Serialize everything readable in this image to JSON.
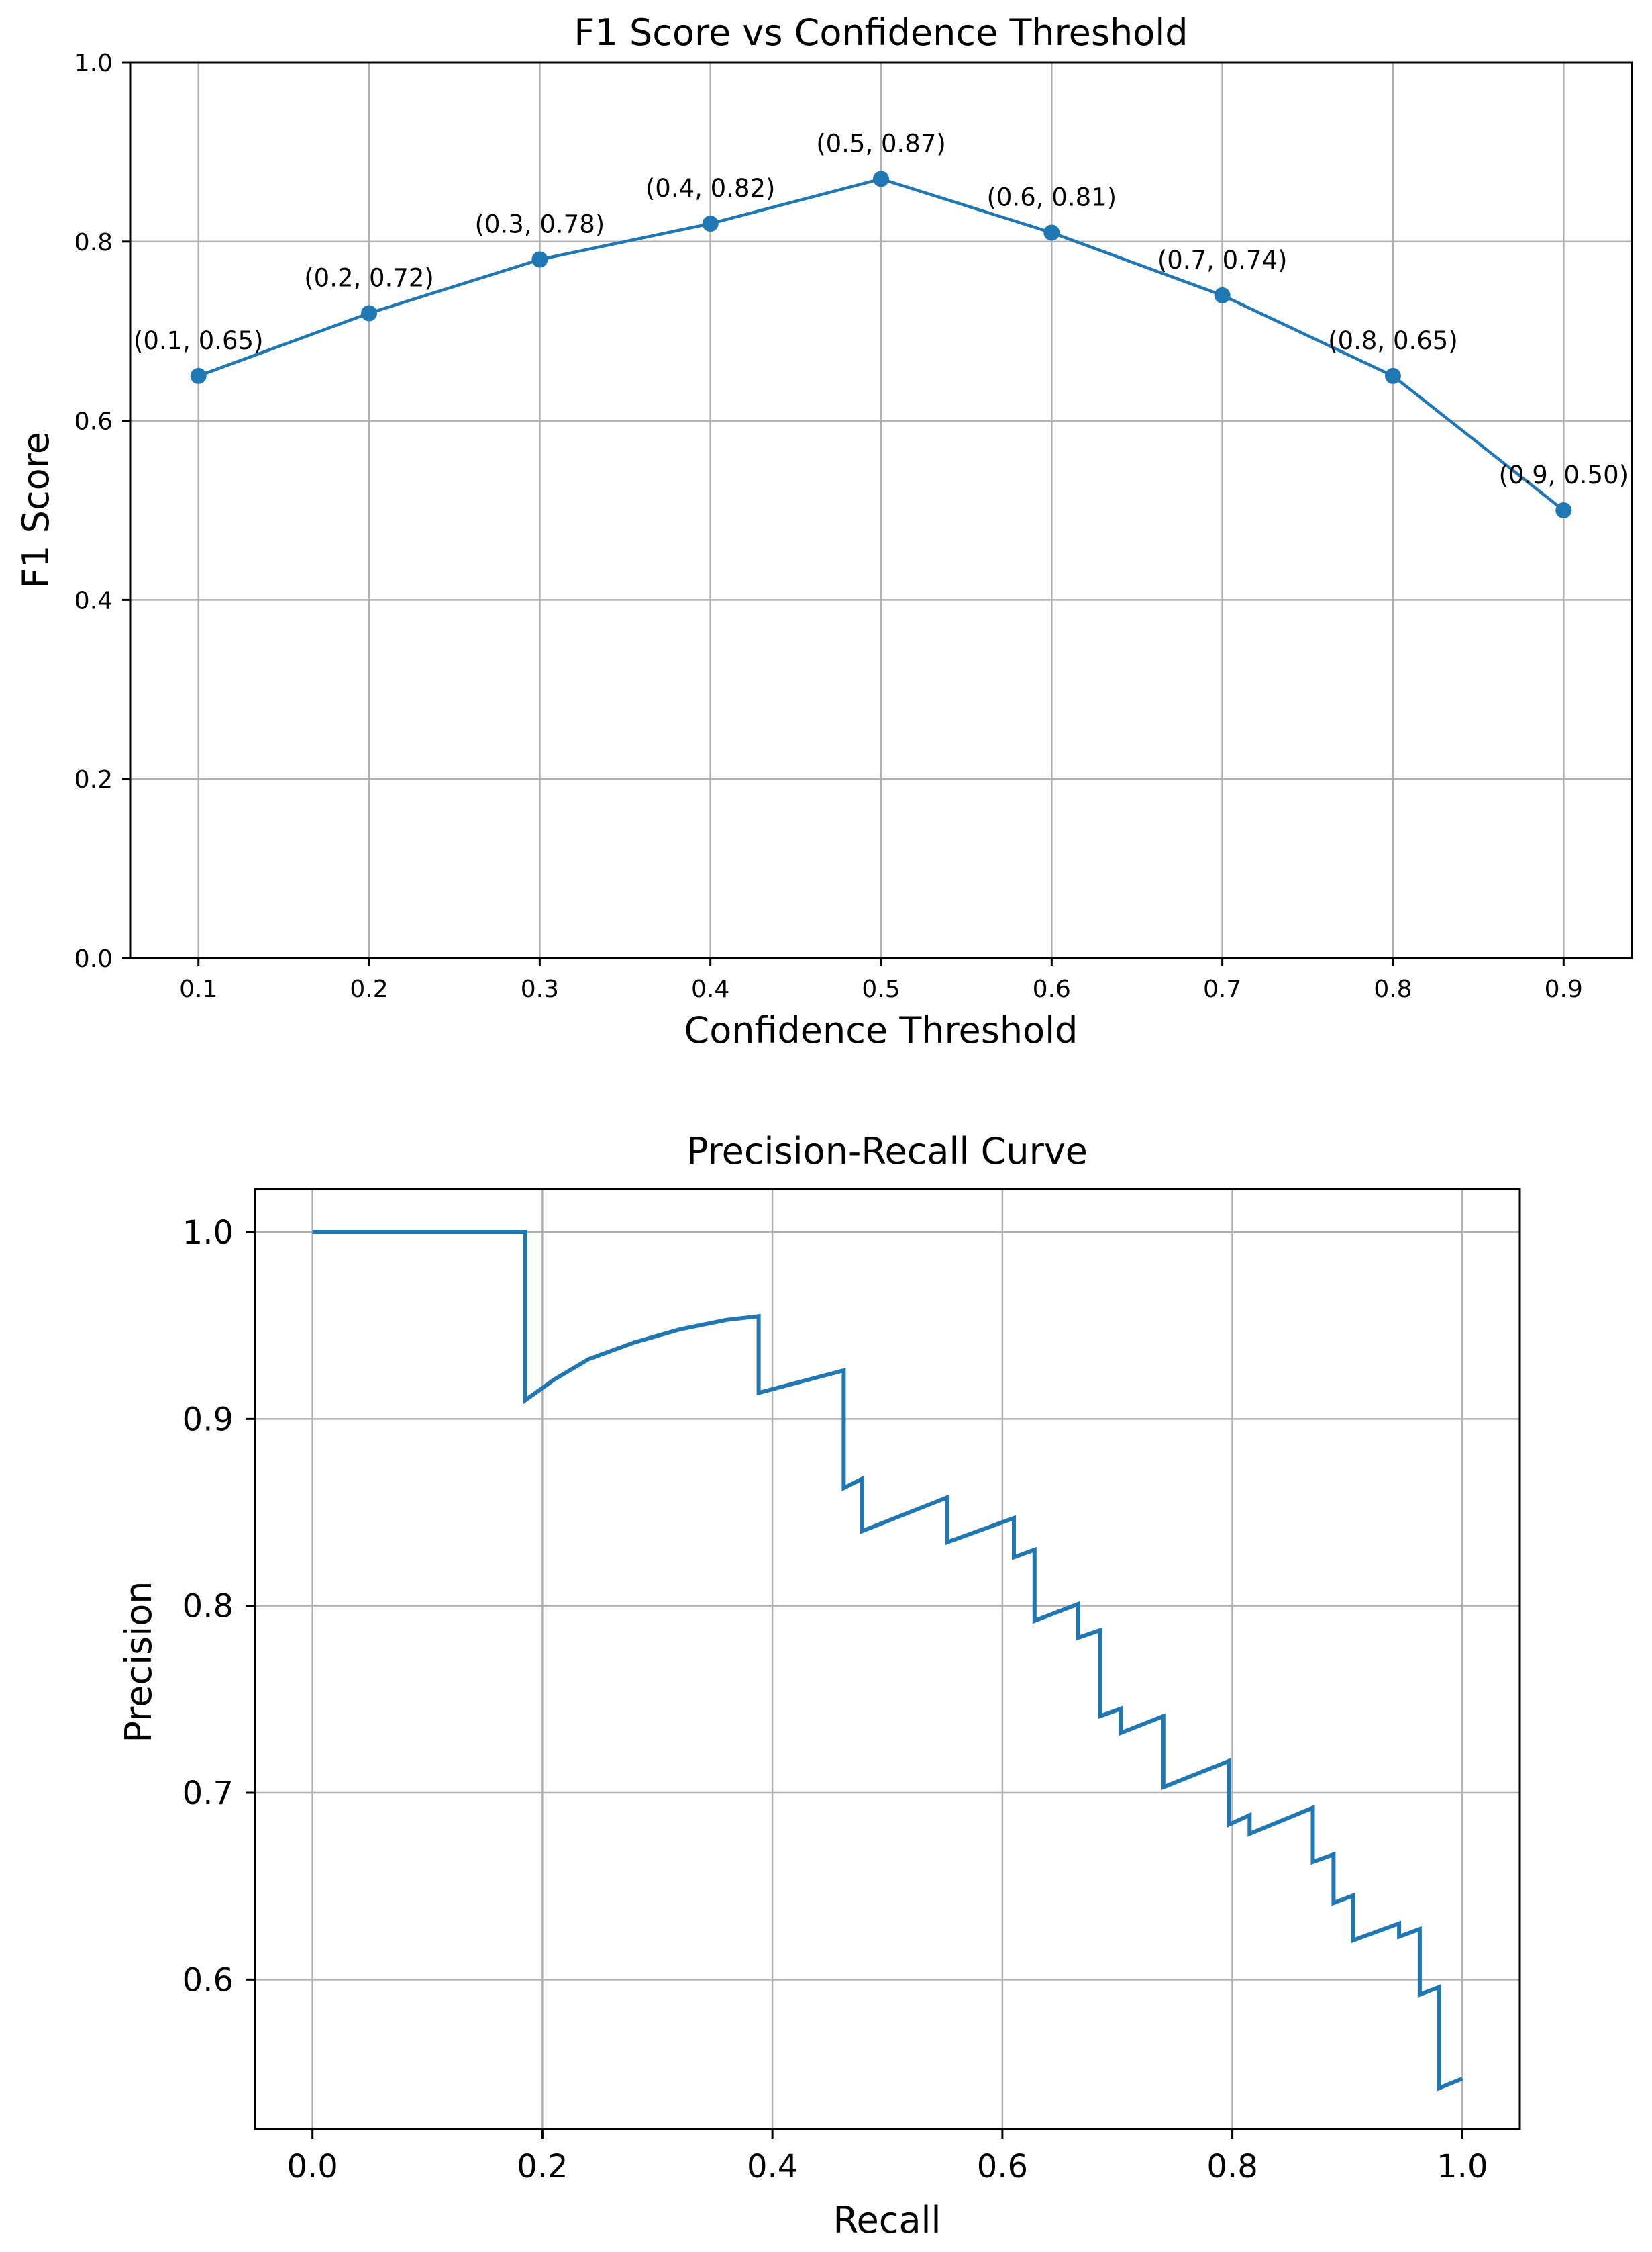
{
  "chart_data": [
    {
      "type": "line",
      "title": "F1 Score vs Confidence Threshold",
      "xlabel": "Confidence Threshold",
      "ylabel": "F1 Score",
      "x": [
        0.1,
        0.2,
        0.3,
        0.4,
        0.5,
        0.6,
        0.7,
        0.8,
        0.9
      ],
      "y": [
        0.65,
        0.72,
        0.78,
        0.82,
        0.87,
        0.81,
        0.74,
        0.65,
        0.5
      ],
      "point_labels": [
        "(0.1, 0.65)",
        "(0.2, 0.72)",
        "(0.3, 0.78)",
        "(0.4, 0.82)",
        "(0.5, 0.87)",
        "(0.6, 0.81)",
        "(0.7, 0.74)",
        "(0.8, 0.65)",
        "(0.9, 0.50)"
      ],
      "xlim": [
        0.06,
        0.94
      ],
      "ylim": [
        0.0,
        1.0
      ],
      "xticks": [
        "0.1",
        "0.2",
        "0.3",
        "0.4",
        "0.5",
        "0.6",
        "0.7",
        "0.8",
        "0.9"
      ],
      "yticks": [
        "0.0",
        "0.2",
        "0.4",
        "0.6",
        "0.8",
        "1.0"
      ],
      "grid": true,
      "color": "#1f77b4"
    },
    {
      "type": "line",
      "title": "Precision-Recall Curve",
      "xlabel": "Recall",
      "ylabel": "Precision",
      "recall": [
        0.0,
        0.185,
        0.185,
        0.21,
        0.24,
        0.28,
        0.32,
        0.36,
        0.388,
        0.388,
        0.462,
        0.462,
        0.478,
        0.478,
        0.552,
        0.552,
        0.61,
        0.61,
        0.628,
        0.628,
        0.666,
        0.666,
        0.685,
        0.685,
        0.703,
        0.703,
        0.74,
        0.74,
        0.797,
        0.797,
        0.815,
        0.815,
        0.87,
        0.87,
        0.888,
        0.888,
        0.905,
        0.905,
        0.945,
        0.945,
        0.963,
        0.963,
        0.98,
        0.98,
        1.0
      ],
      "precision": [
        1.0,
        1.0,
        0.91,
        0.921,
        0.932,
        0.941,
        0.948,
        0.953,
        0.955,
        0.914,
        0.926,
        0.863,
        0.868,
        0.84,
        0.858,
        0.834,
        0.847,
        0.826,
        0.83,
        0.792,
        0.801,
        0.783,
        0.787,
        0.741,
        0.745,
        0.732,
        0.741,
        0.703,
        0.717,
        0.683,
        0.688,
        0.678,
        0.692,
        0.663,
        0.667,
        0.641,
        0.645,
        0.621,
        0.63,
        0.623,
        0.627,
        0.592,
        0.596,
        0.542,
        0.547
      ],
      "xlim": [
        -0.05,
        1.05
      ],
      "ylim": [
        0.52,
        1.023
      ],
      "xticks": [
        "0.0",
        "0.2",
        "0.4",
        "0.6",
        "0.8",
        "1.0"
      ],
      "yticks": [
        "0.6",
        "0.7",
        "0.8",
        "0.9",
        "1.0"
      ],
      "grid": true,
      "color": "#1f77b4"
    }
  ]
}
